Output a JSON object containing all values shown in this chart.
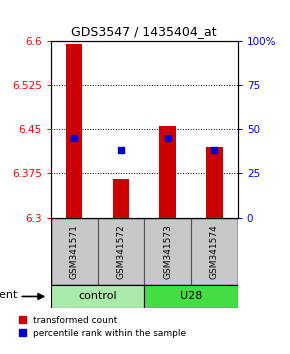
{
  "title": "GDS3547 / 1435404_at",
  "samples": [
    "GSM341571",
    "GSM341572",
    "GSM341573",
    "GSM341574"
  ],
  "bar_bottom": 6.3,
  "bar_tops": [
    6.595,
    6.365,
    6.455,
    6.42
  ],
  "percentile_values": [
    6.435,
    6.415,
    6.435,
    6.415
  ],
  "ylim_left": [
    6.3,
    6.6
  ],
  "ylim_right": [
    0,
    100
  ],
  "yticks_left": [
    6.3,
    6.375,
    6.45,
    6.525,
    6.6
  ],
  "yticks_right": [
    0,
    25,
    50,
    75,
    100
  ],
  "ytick_labels_right": [
    "0",
    "25",
    "50",
    "75",
    "100%"
  ],
  "bar_color": "#CC0000",
  "dot_color": "#0000CC",
  "bar_width": 0.35,
  "dot_size": 18,
  "legend_labels": [
    "transformed count",
    "percentile rank within the sample"
  ],
  "legend_colors": [
    "#CC0000",
    "#0000CC"
  ],
  "sample_box_color": "#C8C8C8",
  "control_color": "#AAEAAA",
  "u28_color": "#44DD44",
  "title_fontsize": 9,
  "axis_fontsize": 7.5,
  "sample_fontsize": 6.5,
  "group_fontsize": 8,
  "legend_fontsize": 6.5,
  "agent_fontsize": 8
}
